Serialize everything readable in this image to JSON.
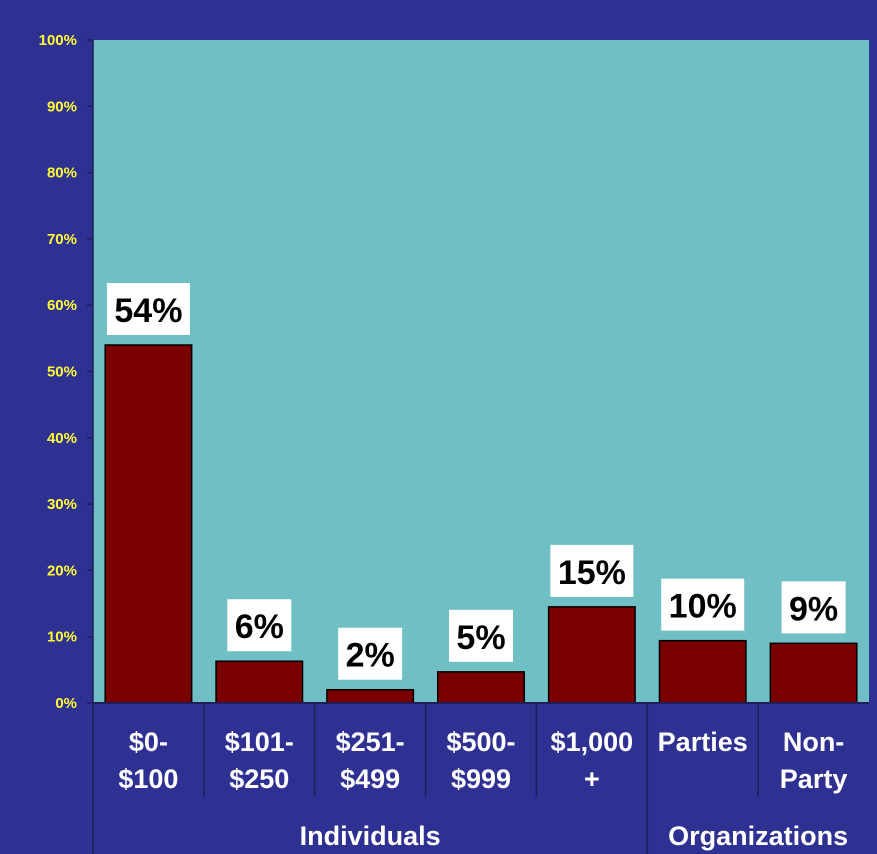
{
  "chart_data": {
    "type": "bar",
    "categories": [
      [
        "$0-",
        "$100"
      ],
      [
        "$101-",
        "$250"
      ],
      [
        "$251-",
        "$499"
      ],
      [
        "$500-",
        "$999"
      ],
      [
        "$1,000",
        "+"
      ],
      [
        "Parties"
      ],
      [
        "Non-",
        "Party"
      ]
    ],
    "values": [
      54,
      6,
      2,
      5,
      15,
      10,
      9
    ],
    "data_labels": [
      "54%",
      "6%",
      "2%",
      "5%",
      "15%",
      "10%",
      "9%"
    ],
    "bar_heights": [
      54,
      6.3,
      2,
      4.7,
      14.5,
      9.4,
      9
    ],
    "ylim": [
      0,
      100
    ],
    "y_ticks": [
      "0%",
      "10%",
      "20%",
      "30%",
      "40%",
      "50%",
      "60%",
      "70%",
      "80%",
      "90%",
      "100%"
    ],
    "groups": [
      {
        "label": "Individuals",
        "span": [
          0,
          4
        ]
      },
      {
        "label": "Organizations",
        "span": [
          5,
          6
        ]
      }
    ],
    "grid": false,
    "legend": "none",
    "colors": {
      "background": "#2e3192",
      "plot_area": "#70bfc4",
      "bar": "#7a0000",
      "tick_label": "#ffff33",
      "category_label": "#ffffff",
      "data_label_box": "#ffffff",
      "data_label_text": "#000000"
    }
  }
}
